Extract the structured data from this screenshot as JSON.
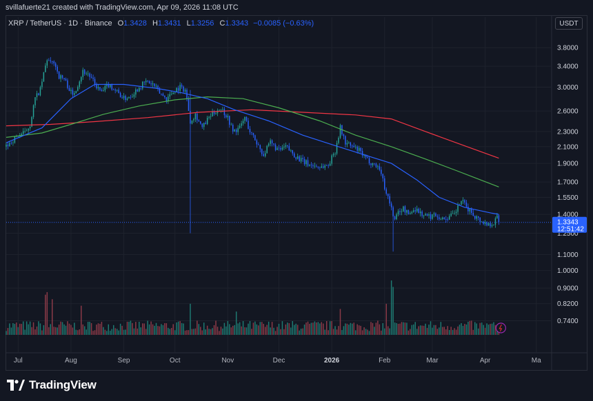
{
  "header": {
    "attribution": "svillafuerte21 created with TradingView.com, Apr 09, 2026 11:08 UTC"
  },
  "legend": {
    "symbol": "XRP / TetherUS · 1D · Binance",
    "o_key": "O",
    "o_val": "1.3428",
    "h_key": "H",
    "h_val": "1.3431",
    "l_key": "L",
    "l_val": "1.3256",
    "c_key": "C",
    "c_val": "1.3343",
    "change": "−0.0085 (−0.63%)"
  },
  "currency_button": "USDT",
  "price_tag": {
    "price": "1.3343",
    "countdown": "12:51:42"
  },
  "branding": {
    "logo_text": "TradingView"
  },
  "colors": {
    "up": "#26a69a",
    "down": "#2962ff",
    "vol_up": "#1e7a72",
    "vol_down": "#8b3a48",
    "ma_fast": "#2962ff",
    "ma_mid": "#4caf50",
    "ma_slow": "#f23645",
    "price_line": "#2962ff"
  },
  "chart_data": {
    "type": "candlestick",
    "y_axis_labels": [
      "3.8000",
      "3.4000",
      "3.0000",
      "2.6000",
      "2.3000",
      "2.1000",
      "1.9000",
      "1.7000",
      "1.5500",
      "1.4000",
      "1.2500",
      "1.1000",
      "1.0000",
      "0.9000",
      "0.8200",
      "0.7400"
    ],
    "ylim": [
      0.68,
      4.2
    ],
    "y_scale": "log",
    "x_axis_labels": [
      {
        "label": "Jul",
        "date": "2025-07-01",
        "bold": false
      },
      {
        "label": "Aug",
        "date": "2025-08-01",
        "bold": false
      },
      {
        "label": "Sep",
        "date": "2025-09-01",
        "bold": false
      },
      {
        "label": "Oct",
        "date": "2025-10-01",
        "bold": false
      },
      {
        "label": "Nov",
        "date": "2025-11-01",
        "bold": false
      },
      {
        "label": "Dec",
        "date": "2025-12-01",
        "bold": false
      },
      {
        "label": "2026",
        "date": "2026-01-01",
        "bold": true
      },
      {
        "label": "Feb",
        "date": "2026-02-01",
        "bold": false
      },
      {
        "label": "Mar",
        "date": "2026-03-01",
        "bold": false
      },
      {
        "label": "Apr",
        "date": "2026-04-01",
        "bold": false
      },
      {
        "label": "Ma",
        "date": "2026-05-01",
        "bold": false
      }
    ],
    "x_range": [
      "2025-06-24",
      "2026-05-10"
    ],
    "price_keypoints": [
      [
        "2025-06-24",
        2.1
      ],
      [
        "2025-07-01",
        2.25
      ],
      [
        "2025-07-05",
        2.28
      ],
      [
        "2025-07-08",
        2.4
      ],
      [
        "2025-07-11",
        2.8
      ],
      [
        "2025-07-14",
        2.95
      ],
      [
        "2025-07-18",
        3.55
      ],
      [
        "2025-07-20",
        3.45
      ],
      [
        "2025-07-22",
        3.5
      ],
      [
        "2025-07-25",
        3.2
      ],
      [
        "2025-07-28",
        3.15
      ],
      [
        "2025-08-02",
        2.85
      ],
      [
        "2025-08-05",
        3.05
      ],
      [
        "2025-08-08",
        3.3
      ],
      [
        "2025-08-11",
        3.25
      ],
      [
        "2025-08-15",
        3.05
      ],
      [
        "2025-08-19",
        2.9
      ],
      [
        "2025-08-23",
        3.05
      ],
      [
        "2025-08-27",
        2.95
      ],
      [
        "2025-09-01",
        2.8
      ],
      [
        "2025-09-05",
        2.85
      ],
      [
        "2025-09-10",
        3.0
      ],
      [
        "2025-09-14",
        3.1
      ],
      [
        "2025-09-18",
        3.05
      ],
      [
        "2025-09-22",
        2.9
      ],
      [
        "2025-09-26",
        2.8
      ],
      [
        "2025-10-01",
        2.95
      ],
      [
        "2025-10-04",
        3.0
      ],
      [
        "2025-10-07",
        2.95
      ],
      [
        "2025-10-10",
        2.45
      ],
      [
        "2025-10-13",
        2.55
      ],
      [
        "2025-10-17",
        2.35
      ],
      [
        "2025-10-21",
        2.5
      ],
      [
        "2025-10-25",
        2.6
      ],
      [
        "2025-10-28",
        2.65
      ],
      [
        "2025-11-01",
        2.5
      ],
      [
        "2025-11-04",
        2.3
      ],
      [
        "2025-11-08",
        2.35
      ],
      [
        "2025-11-11",
        2.5
      ],
      [
        "2025-11-14",
        2.3
      ],
      [
        "2025-11-18",
        2.15
      ],
      [
        "2025-11-22",
        2.0
      ],
      [
        "2025-11-26",
        2.15
      ],
      [
        "2025-12-01",
        2.05
      ],
      [
        "2025-12-05",
        2.1
      ],
      [
        "2025-12-10",
        2.0
      ],
      [
        "2025-12-15",
        1.92
      ],
      [
        "2025-12-20",
        1.88
      ],
      [
        "2025-12-25",
        1.86
      ],
      [
        "2025-12-30",
        1.88
      ],
      [
        "2026-01-03",
        2.05
      ],
      [
        "2026-01-06",
        2.35
      ],
      [
        "2026-01-09",
        2.15
      ],
      [
        "2026-01-13",
        2.1
      ],
      [
        "2026-01-17",
        2.05
      ],
      [
        "2026-01-21",
        1.95
      ],
      [
        "2026-01-25",
        1.9
      ],
      [
        "2026-01-29",
        1.85
      ],
      [
        "2026-02-01",
        1.65
      ],
      [
        "2026-02-04",
        1.5
      ],
      [
        "2026-02-06",
        1.4
      ],
      [
        "2026-02-07",
        1.35
      ],
      [
        "2026-02-09",
        1.42
      ],
      [
        "2026-02-12",
        1.45
      ],
      [
        "2026-02-15",
        1.4
      ],
      [
        "2026-02-19",
        1.45
      ],
      [
        "2026-02-23",
        1.4
      ],
      [
        "2026-02-27",
        1.38
      ],
      [
        "2026-03-03",
        1.4
      ],
      [
        "2026-03-07",
        1.36
      ],
      [
        "2026-03-11",
        1.38
      ],
      [
        "2026-03-14",
        1.4
      ],
      [
        "2026-03-18",
        1.52
      ],
      [
        "2026-03-21",
        1.46
      ],
      [
        "2026-03-25",
        1.4
      ],
      [
        "2026-03-29",
        1.35
      ],
      [
        "2026-04-02",
        1.32
      ],
      [
        "2026-04-06",
        1.33
      ],
      [
        "2026-04-08",
        1.38
      ],
      [
        "2026-04-09",
        1.3343
      ]
    ],
    "wicks": [
      {
        "date": "2025-10-10",
        "low": 1.25,
        "high": 2.95
      },
      {
        "date": "2026-02-06",
        "low": 1.12,
        "high": 1.45
      }
    ],
    "ma_fast": [
      [
        "2025-06-24",
        2.15
      ],
      [
        "2025-07-15",
        2.35
      ],
      [
        "2025-08-01",
        2.8
      ],
      [
        "2025-08-15",
        3.05
      ],
      [
        "2025-09-01",
        3.05
      ],
      [
        "2025-09-20",
        2.98
      ],
      [
        "2025-10-05",
        2.9
      ],
      [
        "2025-10-20",
        2.8
      ],
      [
        "2025-11-05",
        2.62
      ],
      [
        "2025-11-25",
        2.45
      ],
      [
        "2025-12-15",
        2.25
      ],
      [
        "2026-01-05",
        2.1
      ],
      [
        "2026-01-20",
        2.0
      ],
      [
        "2026-02-05",
        1.9
      ],
      [
        "2026-02-20",
        1.72
      ],
      [
        "2026-03-05",
        1.55
      ],
      [
        "2026-03-20",
        1.46
      ],
      [
        "2026-04-05",
        1.41
      ],
      [
        "2026-04-09",
        1.4
      ]
    ],
    "ma_mid": [
      [
        "2025-06-24",
        2.22
      ],
      [
        "2025-07-15",
        2.28
      ],
      [
        "2025-08-01",
        2.4
      ],
      [
        "2025-08-20",
        2.55
      ],
      [
        "2025-09-10",
        2.68
      ],
      [
        "2025-10-01",
        2.78
      ],
      [
        "2025-10-20",
        2.83
      ],
      [
        "2025-11-10",
        2.8
      ],
      [
        "2025-12-01",
        2.65
      ],
      [
        "2025-12-25",
        2.45
      ],
      [
        "2026-01-15",
        2.25
      ],
      [
        "2026-02-05",
        2.1
      ],
      [
        "2026-02-25",
        1.95
      ],
      [
        "2026-03-15",
        1.82
      ],
      [
        "2026-04-09",
        1.65
      ]
    ],
    "ma_slow": [
      [
        "2025-06-24",
        2.38
      ],
      [
        "2025-07-20",
        2.4
      ],
      [
        "2025-08-15",
        2.44
      ],
      [
        "2025-09-15",
        2.5
      ],
      [
        "2025-10-15",
        2.58
      ],
      [
        "2025-11-15",
        2.62
      ],
      [
        "2025-12-15",
        2.58
      ],
      [
        "2026-01-15",
        2.54
      ],
      [
        "2026-02-05",
        2.48
      ],
      [
        "2026-02-25",
        2.3
      ],
      [
        "2026-03-15",
        2.15
      ],
      [
        "2026-04-09",
        1.96
      ]
    ],
    "volume_spikes": [
      {
        "date": "2025-07-17",
        "value": 0.62
      },
      {
        "date": "2025-07-18",
        "value": 0.66
      },
      {
        "date": "2025-07-21",
        "value": 0.55
      },
      {
        "date": "2025-08-07",
        "value": 0.45
      },
      {
        "date": "2025-10-10",
        "value": 0.48
      },
      {
        "date": "2025-11-06",
        "value": 0.36
      },
      {
        "date": "2026-01-06",
        "value": 0.4
      },
      {
        "date": "2026-02-05",
        "value": 0.84
      },
      {
        "date": "2026-02-06",
        "value": 0.74
      },
      {
        "date": "2026-02-02",
        "value": 0.48
      }
    ],
    "last_price": 1.3343
  }
}
